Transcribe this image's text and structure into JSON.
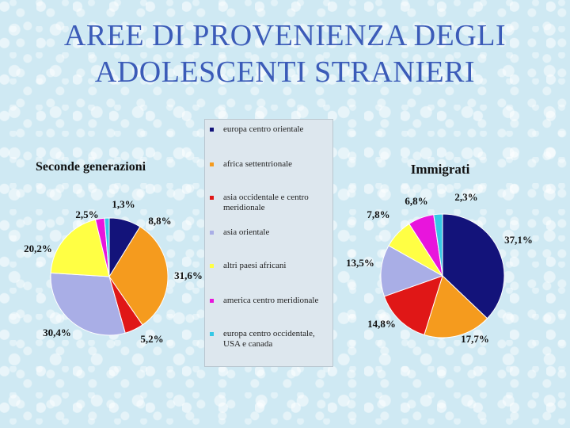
{
  "title": {
    "line1": "AREE DI PROVENIENZA DEGLI",
    "line2": "ADOLESCENTI STRANIERI"
  },
  "legend": [
    {
      "label": "europa centro orientale",
      "color": "#13137a"
    },
    {
      "label": "africa settentrionale",
      "color": "#f59b1e"
    },
    {
      "label": "asia occidentale e centro meridionale",
      "color": "#e01717"
    },
    {
      "label": "asia orientale",
      "color": "#a9aee6"
    },
    {
      "label": "altri paesi africani",
      "color": "#ffff44"
    },
    {
      "label": "america centro meridionale",
      "color": "#e815dc"
    },
    {
      "label": "europa centro occidentale, USA e canada",
      "color": "#35c8e6"
    }
  ],
  "chart_data": [
    {
      "type": "pie",
      "title": "Seconde generazioni",
      "categories": [
        "europa centro orientale",
        "africa settentrionale",
        "asia occidentale e centro meridionale",
        "asia orientale",
        "altri paesi africani",
        "america centro meridionale",
        "europa centro occidentale, USA e canada"
      ],
      "values": [
        8.8,
        31.6,
        5.2,
        30.4,
        20.2,
        2.5,
        1.3
      ],
      "labels": [
        "8,8%",
        "31,6%",
        "5,2%",
        "30,4%",
        "20,2%",
        "2,5%",
        "1,3%"
      ]
    },
    {
      "type": "pie",
      "title": "Immigrati",
      "categories": [
        "europa centro orientale",
        "africa settentrionale",
        "asia occidentale e centro meridionale",
        "asia orientale",
        "altri paesi africani",
        "america centro meridionale",
        "europa centro occidentale, USA e canada"
      ],
      "values": [
        37.1,
        17.7,
        14.8,
        13.5,
        7.8,
        6.8,
        2.3
      ],
      "labels": [
        "37,1%",
        "17,7%",
        "14,8%",
        "13,5%",
        "7,8%",
        "6,8%",
        "2,3%"
      ]
    }
  ]
}
